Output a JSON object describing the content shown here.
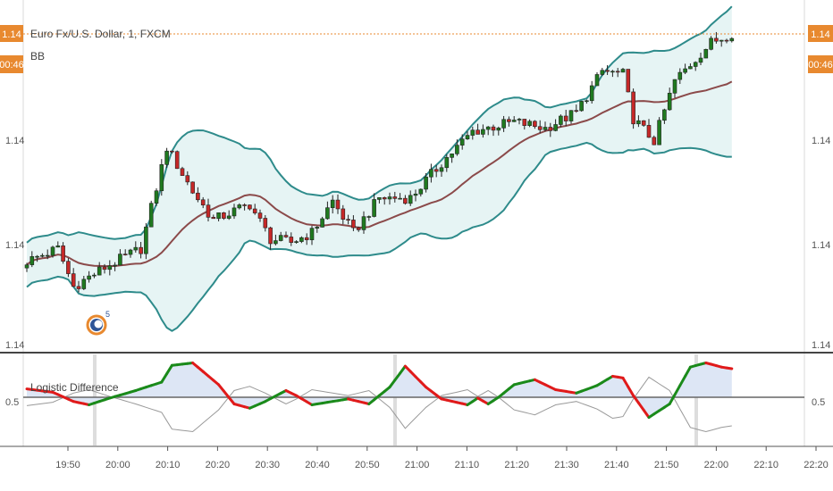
{
  "legend": {
    "symbol": "Euro Fx/U.S. Dollar, 1, FXCM",
    "indicator": "BB"
  },
  "badges": {
    "last_price": "1.14",
    "countdown": "00:46"
  },
  "price_axis_ticks": [
    "1.14",
    "1.14",
    "1.14",
    "1.14"
  ],
  "oscillator": {
    "label": "Logistic Difference",
    "midline_label": "0.5"
  },
  "colors": {
    "candle_up": "#1f7a1f",
    "candle_down": "#c62828",
    "bb_band": "#2e8b8b",
    "bb_basis": "#8b4a4a",
    "bb_fill": "#e6f4f4",
    "last_price_line": "#e8892f",
    "badge_bg": "#e8892f",
    "osc_green": "#1a8a1a",
    "osc_red": "#e01a1a",
    "osc_fill": "#dde6f5",
    "osc_mirror": "#999999",
    "session_marker": "#dddddd"
  },
  "chart_data": [
    {
      "type": "candlestick",
      "title": "Euro Fx/U.S. Dollar, 1, FXCM",
      "indicator": "BB",
      "x_tick_labels": [
        "19:50",
        "20:00",
        "20:10",
        "20:20",
        "20:30",
        "20:40",
        "20:50",
        "21:00",
        "21:10",
        "21:20",
        "21:30",
        "21:40",
        "21:50",
        "22:00",
        "22:10",
        "22:20"
      ],
      "y_tick_labels": [
        "1.14",
        "1.14",
        "1.14",
        "1.14"
      ],
      "bars": 137,
      "close_path": [
        {
          "t": 0,
          "v": 0.26
        },
        {
          "t": 6,
          "v": 0.3
        },
        {
          "t": 9,
          "v": 0.18
        },
        {
          "t": 15,
          "v": 0.24
        },
        {
          "t": 22,
          "v": 0.3
        },
        {
          "t": 27,
          "v": 0.62
        },
        {
          "t": 32,
          "v": 0.48
        },
        {
          "t": 36,
          "v": 0.39
        },
        {
          "t": 43,
          "v": 0.44
        },
        {
          "t": 47,
          "v": 0.33
        },
        {
          "t": 51,
          "v": 0.32
        },
        {
          "t": 55,
          "v": 0.35
        },
        {
          "t": 59,
          "v": 0.45
        },
        {
          "t": 63,
          "v": 0.35
        },
        {
          "t": 68,
          "v": 0.46
        },
        {
          "t": 74,
          "v": 0.46
        },
        {
          "t": 80,
          "v": 0.57
        },
        {
          "t": 86,
          "v": 0.67
        },
        {
          "t": 94,
          "v": 0.7
        },
        {
          "t": 100,
          "v": 0.68
        },
        {
          "t": 106,
          "v": 0.73
        },
        {
          "t": 111,
          "v": 0.86
        },
        {
          "t": 115,
          "v": 0.85
        },
        {
          "t": 117,
          "v": 0.71
        },
        {
          "t": 121,
          "v": 0.64
        },
        {
          "t": 125,
          "v": 0.83
        },
        {
          "t": 132,
          "v": 0.95
        },
        {
          "t": 136,
          "v": 0.98
        }
      ],
      "bands": "Bollinger Bands (upper, basis, lower)"
    },
    {
      "type": "line",
      "title": "Logistic Difference",
      "y_tick_labels": [
        "0.5"
      ],
      "midline": 0.5,
      "series": [
        {
          "name": "Logistic Difference",
          "points": [
            {
              "t": 0,
              "v": 0.6
            },
            {
              "t": 5,
              "v": 0.56
            },
            {
              "t": 9,
              "v": 0.45
            },
            {
              "t": 12,
              "v": 0.41
            },
            {
              "t": 16,
              "v": 0.49
            },
            {
              "t": 21,
              "v": 0.58
            },
            {
              "t": 26,
              "v": 0.68
            },
            {
              "t": 28,
              "v": 0.88
            },
            {
              "t": 32,
              "v": 0.91
            },
            {
              "t": 37,
              "v": 0.65
            },
            {
              "t": 40,
              "v": 0.42
            },
            {
              "t": 43,
              "v": 0.37
            },
            {
              "t": 46,
              "v": 0.45
            },
            {
              "t": 50,
              "v": 0.58
            },
            {
              "t": 52,
              "v": 0.52
            },
            {
              "t": 55,
              "v": 0.41
            },
            {
              "t": 59,
              "v": 0.45
            },
            {
              "t": 62,
              "v": 0.48
            },
            {
              "t": 66,
              "v": 0.42
            },
            {
              "t": 70,
              "v": 0.62
            },
            {
              "t": 73,
              "v": 0.87
            },
            {
              "t": 77,
              "v": 0.62
            },
            {
              "t": 80,
              "v": 0.48
            },
            {
              "t": 85,
              "v": 0.41
            },
            {
              "t": 87,
              "v": 0.49
            },
            {
              "t": 89,
              "v": 0.42
            },
            {
              "t": 91,
              "v": 0.5
            },
            {
              "t": 94,
              "v": 0.65
            },
            {
              "t": 98,
              "v": 0.71
            },
            {
              "t": 102,
              "v": 0.59
            },
            {
              "t": 106,
              "v": 0.55
            },
            {
              "t": 110,
              "v": 0.64
            },
            {
              "t": 113,
              "v": 0.75
            },
            {
              "t": 115,
              "v": 0.73
            },
            {
              "t": 117,
              "v": 0.52
            },
            {
              "t": 120,
              "v": 0.26
            },
            {
              "t": 124,
              "v": 0.42
            },
            {
              "t": 128,
              "v": 0.86
            },
            {
              "t": 131,
              "v": 0.91
            },
            {
              "t": 134,
              "v": 0.86
            },
            {
              "t": 136,
              "v": 0.84
            }
          ]
        }
      ]
    }
  ]
}
